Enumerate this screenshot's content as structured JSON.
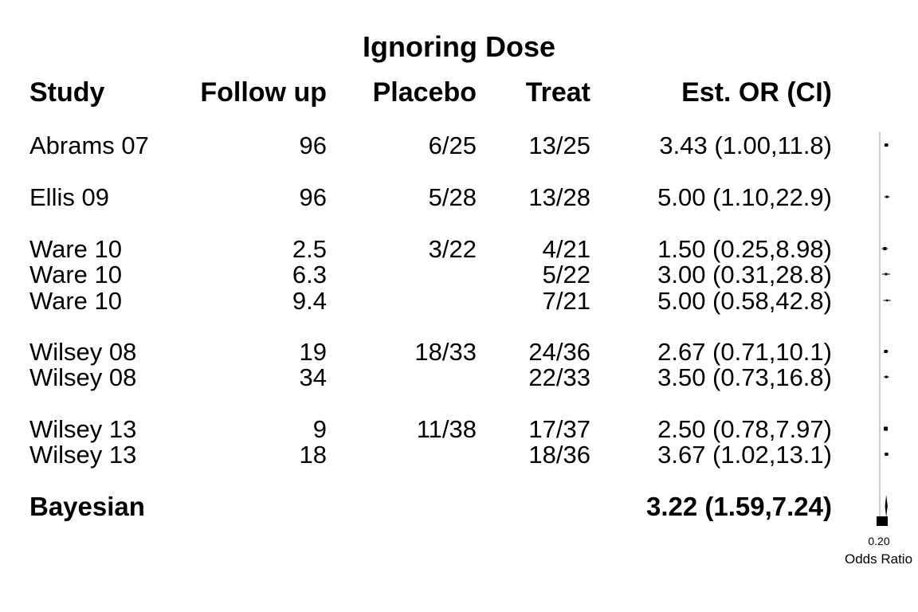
{
  "chart_data": {
    "type": "forest",
    "title": "Ignoring Dose",
    "columns": [
      "Study",
      "Follow up",
      "Placebo",
      "Treat",
      "Est. OR (CI)"
    ],
    "rows": [
      {
        "study": "Abrams 07",
        "follow_up": "96",
        "placebo": "6/25",
        "treat": "13/25",
        "est": "3.43 (1.00,11.8)",
        "or": 3.43,
        "lo": 1.0,
        "hi": 11.8
      },
      {
        "study": "Ellis 09",
        "follow_up": "96",
        "placebo": "5/28",
        "treat": "13/28",
        "est": "5.00 (1.10,22.9)",
        "or": 5.0,
        "lo": 1.1,
        "hi": 22.9
      },
      {
        "study": "Ware 10",
        "follow_up": "2.5",
        "placebo": "3/22",
        "treat": "4/21",
        "est": "1.50 (0.25,8.98)",
        "or": 1.5,
        "lo": 0.25,
        "hi": 8.98
      },
      {
        "study": "Ware 10",
        "follow_up": "6.3",
        "placebo": "",
        "treat": "5/22",
        "est": "3.00 (0.31,28.8)",
        "or": 3.0,
        "lo": 0.31,
        "hi": 28.8
      },
      {
        "study": "Ware 10",
        "follow_up": "9.4",
        "placebo": "",
        "treat": "7/21",
        "est": "5.00 (0.58,42.8)",
        "or": 5.0,
        "lo": 0.58,
        "hi": 42.8
      },
      {
        "study": "Wilsey 08",
        "follow_up": "19",
        "placebo": "18/33",
        "treat": "24/36",
        "est": "2.67 (0.71,10.1)",
        "or": 2.67,
        "lo": 0.71,
        "hi": 10.1
      },
      {
        "study": "Wilsey 08",
        "follow_up": "34",
        "placebo": "",
        "treat": "22/33",
        "est": "3.50 (0.73,16.8)",
        "or": 3.5,
        "lo": 0.73,
        "hi": 16.8
      },
      {
        "study": "Wilsey 13",
        "follow_up": "9",
        "placebo": "11/38",
        "treat": "17/37",
        "est": "2.50 (0.78,7.97)",
        "or": 2.5,
        "lo": 0.78,
        "hi": 7.97
      },
      {
        "study": "Wilsey 13",
        "follow_up": "18",
        "placebo": "",
        "treat": "18/36",
        "est": "3.67 (1.02,13.1)",
        "or": 3.67,
        "lo": 1.02,
        "hi": 13.1
      }
    ],
    "summary": {
      "study": "Bayesian",
      "est": "3.22 (1.59,7.24)",
      "or": 3.22,
      "lo": 1.59,
      "hi": 7.24
    },
    "x_axis": {
      "label": "Odds Ratio",
      "ticks": [
        "0.20"
      ],
      "scale": "log"
    }
  }
}
